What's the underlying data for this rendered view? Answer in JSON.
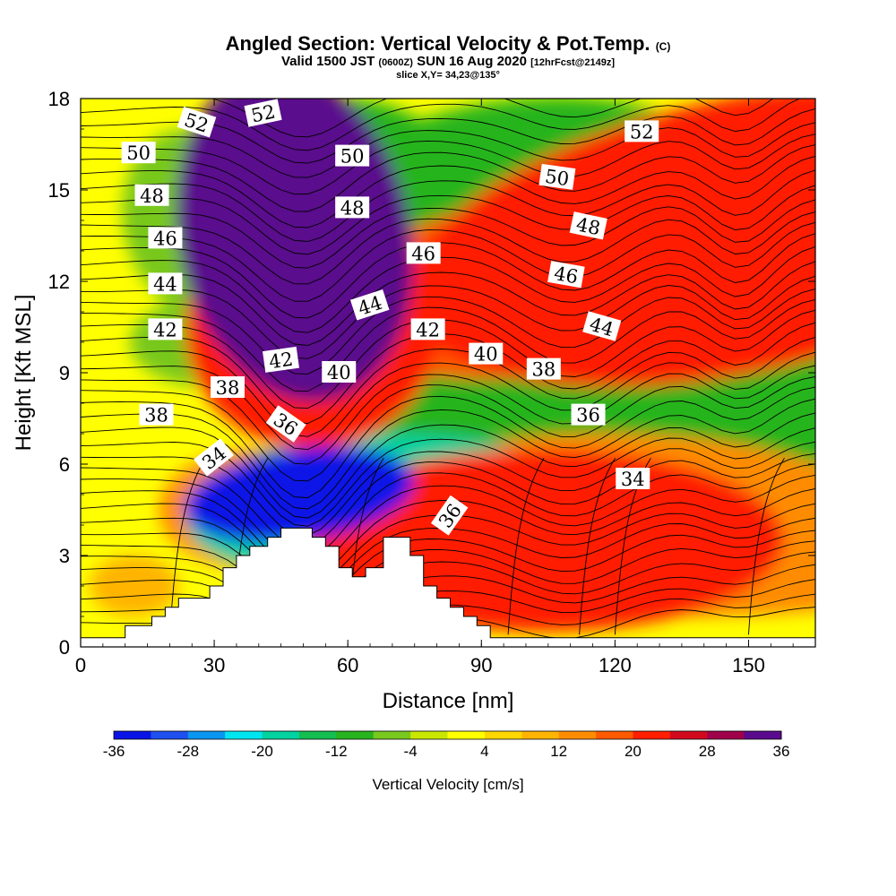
{
  "title": "Angled Section: Vertical Velocity & Pot.Temp.",
  "title_mark": "(C)",
  "subtitle_pre": "Valid 1500 JST",
  "subtitle_utc": "(0600Z)",
  "subtitle_date": "SUN 16 Aug 2020",
  "subtitle_fcst": "[12hrFcst@2149z]",
  "slice_label": "slice X,Y= 34,23@135°",
  "chart_data": {
    "type": "heatmap",
    "xlabel": "Distance [nm]",
    "ylabel": "Height [Kft MSL]",
    "xlim": [
      0,
      165
    ],
    "ylim": [
      0,
      18
    ],
    "xticks": [
      "0",
      "30",
      "60",
      "90",
      "120",
      "150"
    ],
    "yticks": [
      "0",
      "3",
      "6",
      "9",
      "12",
      "15",
      "18"
    ],
    "colorbar": {
      "label": "Vertical Velocity [cm/s]",
      "tick_labels": [
        "-36",
        "-28",
        "-20",
        "-12",
        "-4",
        "4",
        "12",
        "20",
        "28",
        "36"
      ],
      "range": [
        -36,
        36
      ],
      "colors": [
        "#0a14e6",
        "#1e50f0",
        "#0a96f0",
        "#00e6f0",
        "#00d2a0",
        "#14be50",
        "#28b41e",
        "#78c81e",
        "#c8e600",
        "#ffff00",
        "#ffd700",
        "#ffb400",
        "#ff8c00",
        "#ff5a00",
        "#ff1e00",
        "#d20a1e",
        "#a0004b",
        "#5a0a8c"
      ]
    },
    "terrain_kft": [
      [
        0,
        0.3
      ],
      [
        10,
        0.3
      ],
      [
        10,
        0.7
      ],
      [
        16,
        0.7
      ],
      [
        16,
        1.0
      ],
      [
        19,
        1.0
      ],
      [
        19,
        1.3
      ],
      [
        22,
        1.3
      ],
      [
        22,
        1.6
      ],
      [
        29,
        1.6
      ],
      [
        29,
        2.0
      ],
      [
        32,
        2.0
      ],
      [
        32,
        2.6
      ],
      [
        35,
        2.6
      ],
      [
        35,
        3.0
      ],
      [
        38,
        3.0
      ],
      [
        38,
        3.3
      ],
      [
        42,
        3.3
      ],
      [
        42,
        3.6
      ],
      [
        45,
        3.6
      ],
      [
        45,
        3.9
      ],
      [
        52,
        3.9
      ],
      [
        52,
        3.6
      ],
      [
        55,
        3.6
      ],
      [
        55,
        3.3
      ],
      [
        58,
        3.3
      ],
      [
        58,
        2.6
      ],
      [
        61,
        2.6
      ],
      [
        61,
        2.3
      ],
      [
        64,
        2.3
      ],
      [
        64,
        2.6
      ],
      [
        68,
        2.6
      ],
      [
        68,
        3.6
      ],
      [
        74,
        3.6
      ],
      [
        74,
        3.0
      ],
      [
        77,
        3.0
      ],
      [
        77,
        2.0
      ],
      [
        80,
        2.0
      ],
      [
        80,
        1.6
      ],
      [
        83,
        1.6
      ],
      [
        83,
        1.3
      ],
      [
        86,
        1.3
      ],
      [
        86,
        1.0
      ],
      [
        89,
        1.0
      ],
      [
        89,
        0.7
      ],
      [
        92,
        0.7
      ],
      [
        92,
        0.3
      ],
      [
        165,
        0.3
      ]
    ],
    "vertical_velocity_features": [
      {
        "x": 48,
        "y": 13.5,
        "w": 4,
        "h": 11,
        "tilt": 12,
        "value": 36
      },
      {
        "x": 52,
        "y": 10.5,
        "w": 5,
        "h": 8,
        "tilt": 10,
        "value": 22
      },
      {
        "x": 49,
        "y": 5.0,
        "w": 3,
        "h": 3,
        "tilt": 8,
        "value": -36
      },
      {
        "x": 51,
        "y": 4.5,
        "w": 4,
        "h": 4,
        "tilt": 5,
        "value": -20
      },
      {
        "x": 40,
        "y": 4.5,
        "w": 5,
        "h": 4,
        "tilt": 0,
        "value": 14
      },
      {
        "x": 104,
        "y": 3.5,
        "w": 4,
        "h": 6,
        "tilt": 0,
        "value": 22
      },
      {
        "x": 118,
        "y": 4.0,
        "w": 8,
        "h": 6,
        "tilt": 0,
        "value": 14
      },
      {
        "x": 138,
        "y": 3.5,
        "w": 8,
        "h": 5,
        "tilt": 0,
        "value": 14
      },
      {
        "x": 148,
        "y": 13.5,
        "w": 4,
        "h": 9,
        "tilt": 12,
        "value": 22
      },
      {
        "x": 100,
        "y": 3.5,
        "w": 3,
        "h": 5,
        "tilt": 0,
        "value": -20
      },
      {
        "x": 70,
        "y": 5.5,
        "w": 3,
        "h": 3,
        "tilt": 0,
        "value": -20
      },
      {
        "x": 58,
        "y": 14,
        "w": 3,
        "h": 8,
        "tilt": 10,
        "value": -12
      },
      {
        "x": 100,
        "y": 14,
        "w": 3,
        "h": 8,
        "tilt": 6,
        "value": -12
      },
      {
        "x": 132,
        "y": 10,
        "w": 4,
        "h": 7,
        "tilt": 10,
        "value": -12
      },
      {
        "x": 140,
        "y": 7,
        "w": 3,
        "h": 4,
        "tilt": 0,
        "value": -12
      },
      {
        "x": 25,
        "y": 14,
        "w": 6,
        "h": 6,
        "tilt": 10,
        "value": -8
      },
      {
        "x": 30,
        "y": 10,
        "w": 8,
        "h": 3,
        "tilt": 0,
        "value": -6
      },
      {
        "x": 125,
        "y": 4,
        "w": 3,
        "h": 5,
        "tilt": 0,
        "value": -12
      },
      {
        "x": 78,
        "y": 10,
        "w": 10,
        "h": 4,
        "tilt": 0,
        "value": 10
      },
      {
        "x": 110,
        "y": 12,
        "w": 4,
        "h": 6,
        "tilt": 8,
        "value": 16
      },
      {
        "x": 12,
        "y": 2.0,
        "w": 8,
        "h": 2,
        "tilt": 0,
        "value": 10
      },
      {
        "x": 160,
        "y": 6,
        "w": 5,
        "h": 6,
        "tilt": 0,
        "value": -4
      },
      {
        "x": 88,
        "y": 2.5,
        "w": 8,
        "h": 3,
        "tilt": 0,
        "value": -6
      },
      {
        "x": 82,
        "y": 5.5,
        "w": 3,
        "h": 4,
        "tilt": 0,
        "value": -12
      }
    ],
    "theta_contour_labels": [
      {
        "text": "52",
        "x": 26,
        "y": 17.2,
        "rot": 18
      },
      {
        "text": "52",
        "x": 41,
        "y": 17.5,
        "rot": -12
      },
      {
        "text": "50",
        "x": 13,
        "y": 16.2,
        "rot": 0
      },
      {
        "text": "48",
        "x": 16,
        "y": 14.8,
        "rot": 0
      },
      {
        "text": "46",
        "x": 19,
        "y": 13.4,
        "rot": 0
      },
      {
        "text": "44",
        "x": 19,
        "y": 11.9,
        "rot": 0
      },
      {
        "text": "42",
        "x": 19,
        "y": 10.4,
        "rot": 0
      },
      {
        "text": "42",
        "x": 45,
        "y": 9.4,
        "rot": -8
      },
      {
        "text": "38",
        "x": 33,
        "y": 8.5,
        "rot": 0
      },
      {
        "text": "38",
        "x": 17,
        "y": 7.6,
        "rot": 0
      },
      {
        "text": "34",
        "x": 30,
        "y": 6.2,
        "rot": -38
      },
      {
        "text": "36",
        "x": 46,
        "y": 7.3,
        "rot": 35
      },
      {
        "text": "50",
        "x": 61,
        "y": 16.1,
        "rot": 0
      },
      {
        "text": "48",
        "x": 61,
        "y": 14.4,
        "rot": 0
      },
      {
        "text": "46",
        "x": 77,
        "y": 12.9,
        "rot": 0
      },
      {
        "text": "44",
        "x": 65,
        "y": 11.2,
        "rot": -18
      },
      {
        "text": "42",
        "x": 78,
        "y": 10.4,
        "rot": 0
      },
      {
        "text": "40",
        "x": 58,
        "y": 9.0,
        "rot": 0
      },
      {
        "text": "40",
        "x": 91,
        "y": 9.6,
        "rot": 0
      },
      {
        "text": "38",
        "x": 104,
        "y": 9.1,
        "rot": 0
      },
      {
        "text": "36",
        "x": 114,
        "y": 7.6,
        "rot": 0
      },
      {
        "text": "36",
        "x": 83,
        "y": 4.3,
        "rot": -55
      },
      {
        "text": "34",
        "x": 124,
        "y": 5.5,
        "rot": 0
      },
      {
        "text": "50",
        "x": 107,
        "y": 15.4,
        "rot": 8
      },
      {
        "text": "48",
        "x": 114,
        "y": 13.8,
        "rot": 12
      },
      {
        "text": "46",
        "x": 109,
        "y": 12.2,
        "rot": 10
      },
      {
        "text": "44",
        "x": 117,
        "y": 10.5,
        "rot": 16
      },
      {
        "text": "52",
        "x": 126,
        "y": 16.9,
        "rot": 0
      }
    ]
  }
}
